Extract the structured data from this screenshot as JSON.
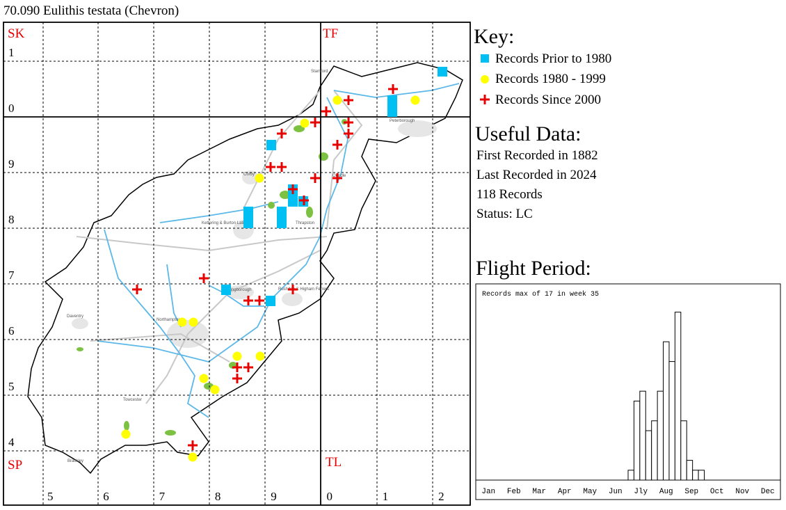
{
  "title": "70.090 Eulithis testata (Chevron)",
  "map": {
    "squares": [
      "SK",
      "TF",
      "SP",
      "TL"
    ],
    "northings": [
      "1",
      "0",
      "9",
      "8",
      "7",
      "6",
      "5",
      "4"
    ],
    "eastings": [
      "5",
      "6",
      "7",
      "8",
      "9",
      "0",
      "1",
      "2"
    ],
    "places": [
      "Stamford",
      "Peterborough",
      "Corby",
      "Oundle",
      "Kettering & Burton Latimer",
      "Thrapston",
      "Wellingborough",
      "Rushden & Higham Ferrers",
      "Daventry",
      "Northampton",
      "Towcester",
      "Brackley"
    ]
  },
  "key": {
    "title": "Key:",
    "items": [
      "Records Prior to 1980",
      "Records 1980 - 1999",
      "Records Since 2000"
    ]
  },
  "useful_data": {
    "title": "Useful Data:",
    "lines": [
      "First Recorded in 1882",
      "Last Recorded in 2024",
      "118 Records",
      "Status: LC"
    ]
  },
  "flight_period": {
    "title": "Flight Period:",
    "note": "Records max of 17 in week 35",
    "months": [
      "Jan",
      "Feb",
      "Mar",
      "Apr",
      "May",
      "Jun",
      "Jly",
      "Aug",
      "Sep",
      "Oct",
      "Nov",
      "Dec"
    ],
    "weeks": [
      27,
      28,
      29,
      30,
      31,
      32,
      33,
      34,
      35,
      36,
      37,
      38,
      39
    ],
    "values": [
      1,
      8,
      9,
      5,
      6,
      9,
      14,
      12,
      17,
      6,
      2,
      1,
      1
    ]
  }
}
